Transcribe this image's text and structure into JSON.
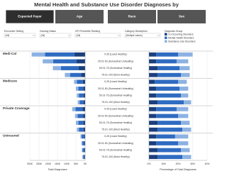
{
  "title": "Mental Health and Substance Use Disorder Diagnoses by",
  "tabs": [
    "Expected Payer",
    "Age",
    "Race",
    "Sex"
  ],
  "filters": [
    {
      "label": "Encounter Setting",
      "value": "(All)"
    },
    {
      "label": "Housing Status",
      "value": "(All)"
    },
    {
      "label": "HPI Percentile Ranking",
      "value": "(All)"
    },
    {
      "label": "Category Description",
      "value": "(Multiple values)"
    }
  ],
  "chart_data": [
    {
      "type": "stacked-bar",
      "legend_title": "Diagnosis Group",
      "groups": [
        "Medi-Cal",
        "Medicare",
        "Private Coverage",
        "Uninsured"
      ],
      "categories": [
        "0-25 (Least Healthy)",
        "25.01-50 (Somewhat Unhealthy)",
        "50.01-75 (Somewhat Healthy)",
        "75.01-100 (Most Healthy)",
        "0-25 (Least Healthy)",
        "25.01-50 (Somewhat Unhealthy)",
        "50.01-75 (Somewhat Healthy)",
        "75.01-100 (Most Healthy)",
        "0-25 (Least Healthy)",
        "25.01-50 (Somewhat Unhealthy)",
        "50.01-75 (Somewhat Healthy)",
        "75.01-100 (Most Healthy)",
        "0-25 (Least Healthy)",
        "25.01-50 (Somewhat Unhealthy)",
        "50.01-75 (Somewhat Healthy)",
        "75.01-100 (Most Healthy)"
      ],
      "x_label": "Total Diagnoses",
      "xlim": [
        300000,
        0
      ],
      "xticks": [
        {
          "value": 300000,
          "label": "300K"
        },
        {
          "value": 250000,
          "label": "250K"
        },
        {
          "value": 200000,
          "label": "200K"
        },
        {
          "value": 150000,
          "label": "150K"
        },
        {
          "value": 100000,
          "label": "100K"
        },
        {
          "value": 50000,
          "label": "50K"
        },
        {
          "value": 0,
          "label": "0K"
        }
      ],
      "series": [
        {
          "name": "Co-Occurring Disorders",
          "color": "#1c3f7c",
          "values": [
            58000,
            46000,
            35000,
            22000,
            12000,
            10000,
            9000,
            8000,
            14000,
            11000,
            10000,
            9000,
            5000,
            4000,
            3600,
            3000
          ]
        },
        {
          "name": "Mental Health Disorders",
          "color": "#2f6bc1",
          "values": [
            160000,
            127000,
            96000,
            60000,
            33000,
            27000,
            25000,
            22000,
            38000,
            30000,
            27000,
            25000,
            14000,
            11000,
            10000,
            8000
          ]
        },
        {
          "name": "Substance Use Disorders",
          "color": "#8db2e2",
          "values": [
            72000,
            57000,
            44000,
            28000,
            15000,
            13000,
            11000,
            10000,
            18000,
            14000,
            13000,
            11000,
            6000,
            5000,
            4400,
            4000
          ]
        }
      ]
    },
    {
      "type": "stacked-bar",
      "x_label": "Percentage of Total Diagnoses",
      "xlim": [
        0,
        40
      ],
      "xticks": [
        {
          "value": 0,
          "label": "0%"
        },
        {
          "value": 10,
          "label": "10%"
        },
        {
          "value": 20,
          "label": "20%"
        },
        {
          "value": 30,
          "label": "30%"
        },
        {
          "value": 40,
          "label": "40%"
        }
      ],
      "series": [
        {
          "color": "#1c3f7c",
          "values": [
            5,
            5,
            6,
            6,
            4,
            5,
            5,
            6,
            5,
            5,
            6,
            6,
            5,
            5,
            6,
            6
          ]
        },
        {
          "color": "#2f6bc1",
          "values": [
            15,
            14,
            15,
            16,
            16,
            16,
            17,
            18,
            14,
            15,
            16,
            17,
            13,
            15,
            16,
            17
          ]
        },
        {
          "color": "#8db2e2",
          "values": [
            10,
            8,
            7,
            6,
            6,
            6,
            5,
            5,
            8,
            7,
            6,
            6,
            9,
            7,
            6,
            6
          ]
        }
      ]
    }
  ]
}
